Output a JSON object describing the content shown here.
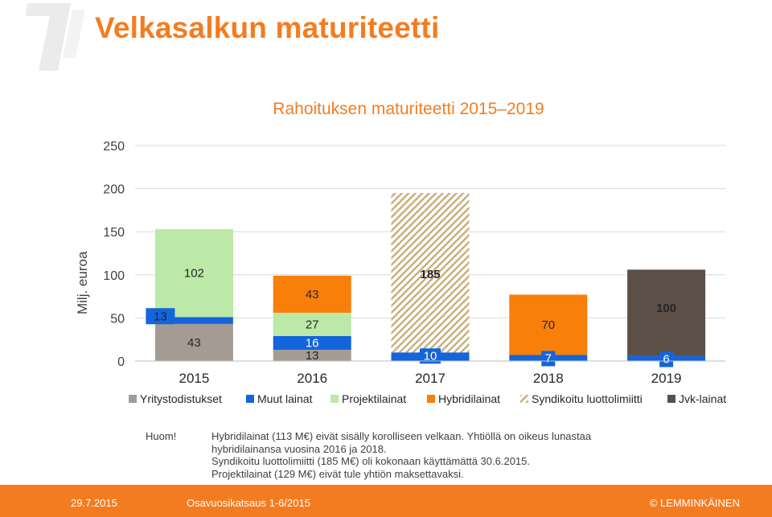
{
  "header": {
    "title": "Velkasalkun maturiteetti"
  },
  "notes": {
    "label": "Huom!",
    "lines": [
      "Hybridilainat (113 M€) eivät sisälly korolliseen velkaan. Yhtiöllä on oikeus lunastaa",
      "hybridilainansa vuosina 2016 ja 2018.",
      "Syndikoitu luottolimiitti (185 M€) oli kokonaan käyttämättä 30.6.2015.",
      "Projektilainat (129 M€) eivät tule yhtiön maksettavaksi."
    ]
  },
  "footer": {
    "date": "29.7.2015",
    "report": "Osavuosikatsaus 1-6/2015",
    "brand": "© LEMMINKÄINEN"
  },
  "colors": {
    "accent": "#f47c20",
    "Yritystodistukset": "#a49c94",
    "Muut lainat": "#1464dc",
    "Projektilainat": "#bce8a8",
    "Hybridilainat": "#f77f0a",
    "Syndikoitu luottolimiitti": "#c8ad78",
    "Jvk-lainat": "#5b4f47"
  },
  "chart_data": {
    "type": "bar",
    "stacked": true,
    "title": "Rahoituksen maturiteetti 2015–2019",
    "ylabel": "Milj. euroa",
    "xlabel": "",
    "ylim": [
      0,
      250
    ],
    "yticks": [
      0,
      50,
      100,
      150,
      200,
      250
    ],
    "grid": true,
    "legend_position": "bottom",
    "categories": [
      "2015",
      "2016",
      "2017",
      "2018",
      "2019"
    ],
    "series": [
      {
        "name": "Yritystodistukset",
        "values": [
          43,
          13,
          0,
          0,
          0
        ],
        "labels": [
          "43",
          "13",
          "",
          "",
          ""
        ]
      },
      {
        "name": "Muut lainat",
        "values": [
          8,
          16,
          10,
          7,
          6
        ],
        "labels": [
          "",
          "16",
          "10",
          "7",
          "6"
        ]
      },
      {
        "name": "Projektilainat",
        "values": [
          102,
          27,
          0,
          0,
          0
        ],
        "labels": [
          "102",
          "27",
          "",
          "",
          ""
        ]
      },
      {
        "name": "Hybridilainat",
        "values": [
          0,
          43,
          0,
          70,
          0
        ],
        "labels": [
          "",
          "43",
          "",
          "70",
          ""
        ]
      },
      {
        "name": "Syndikoitu luottolimiitti",
        "values": [
          0,
          0,
          185,
          0,
          0
        ],
        "labels": [
          "",
          "",
          "185",
          "",
          ""
        ]
      },
      {
        "name": "Jvk-lainat",
        "values": [
          0,
          0,
          0,
          0,
          100
        ],
        "labels": [
          "",
          "",
          "",
          "",
          "100"
        ]
      }
    ],
    "extra_labels": [
      {
        "category": "2015",
        "value": 13
      }
    ]
  }
}
